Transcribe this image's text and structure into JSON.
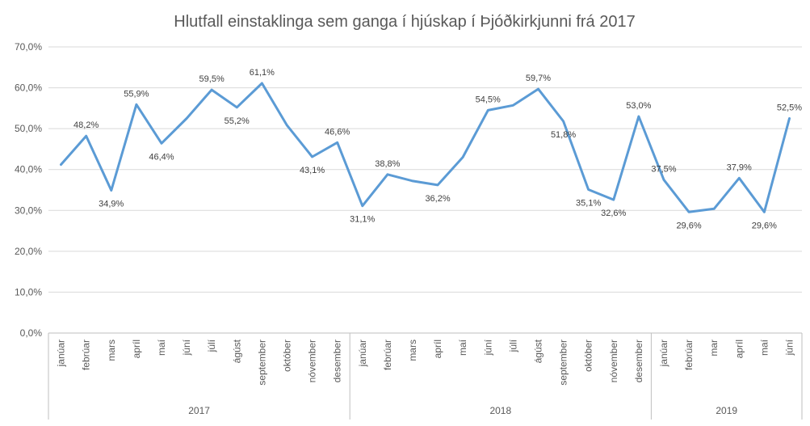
{
  "chart_data": {
    "type": "line",
    "title": "Hlutfall einstaklinga sem ganga í hjúskap í Þjóðkirkjunni frá 2017",
    "ylim": [
      0,
      70
    ],
    "yticks": [
      "0,0%",
      "10,0%",
      "20,0%",
      "30,0%",
      "40,0%",
      "50,0%",
      "60,0%",
      "70,0%"
    ],
    "ytick_values": [
      0,
      10,
      20,
      30,
      40,
      50,
      60,
      70
    ],
    "grid": true,
    "line_color": "#5B9BD5",
    "categories": [
      "janúar",
      "febrúar",
      "mars",
      "apríl",
      "maí",
      "júní",
      "júlí",
      "ágúst",
      "september",
      "október",
      "nóvember",
      "desember",
      "janúar",
      "febrúar",
      "mars",
      "apríl",
      "maí",
      "júní",
      "júlí",
      "ágúst",
      "september",
      "október",
      "nóvember",
      "desember",
      "janúar",
      "febrúar",
      "mar",
      "apríl",
      "maí",
      "júní"
    ],
    "years": [
      {
        "label": "2017",
        "start": 0,
        "end": 11
      },
      {
        "label": "2018",
        "start": 12,
        "end": 23
      },
      {
        "label": "2019",
        "start": 24,
        "end": 29
      }
    ],
    "values": [
      41.2,
      48.2,
      34.9,
      55.9,
      46.4,
      52.5,
      59.5,
      55.2,
      61.1,
      50.8,
      43.1,
      46.6,
      31.1,
      38.8,
      37.2,
      36.2,
      43.0,
      54.5,
      55.7,
      59.7,
      51.8,
      35.1,
      32.6,
      53.0,
      37.5,
      29.6,
      30.4,
      37.9,
      29.6,
      52.5
    ],
    "data_labels": [
      {
        "i": 1,
        "text": "48,2%",
        "pos": "above"
      },
      {
        "i": 2,
        "text": "34,9%",
        "pos": "below"
      },
      {
        "i": 3,
        "text": "55,9%",
        "pos": "above"
      },
      {
        "i": 4,
        "text": "46,4%",
        "pos": "below"
      },
      {
        "i": 6,
        "text": "59,5%",
        "pos": "above"
      },
      {
        "i": 7,
        "text": "55,2%",
        "pos": "below"
      },
      {
        "i": 8,
        "text": "61,1%",
        "pos": "above"
      },
      {
        "i": 10,
        "text": "43,1%",
        "pos": "below"
      },
      {
        "i": 11,
        "text": "46,6%",
        "pos": "above"
      },
      {
        "i": 12,
        "text": "31,1%",
        "pos": "below"
      },
      {
        "i": 13,
        "text": "38,8%",
        "pos": "above"
      },
      {
        "i": 15,
        "text": "36,2%",
        "pos": "below"
      },
      {
        "i": 17,
        "text": "54,5%",
        "pos": "above"
      },
      {
        "i": 19,
        "text": "59,7%",
        "pos": "above"
      },
      {
        "i": 20,
        "text": "51,8%",
        "pos": "below"
      },
      {
        "i": 21,
        "text": "35,1%",
        "pos": "below"
      },
      {
        "i": 22,
        "text": "32,6%",
        "pos": "below"
      },
      {
        "i": 23,
        "text": "53,0%",
        "pos": "above"
      },
      {
        "i": 24,
        "text": "37,5%",
        "pos": "above"
      },
      {
        "i": 25,
        "text": "29,6%",
        "pos": "below"
      },
      {
        "i": 27,
        "text": "37,9%",
        "pos": "above"
      },
      {
        "i": 28,
        "text": "29,6%",
        "pos": "below"
      },
      {
        "i": 29,
        "text": "52,5%",
        "pos": "above"
      }
    ]
  }
}
